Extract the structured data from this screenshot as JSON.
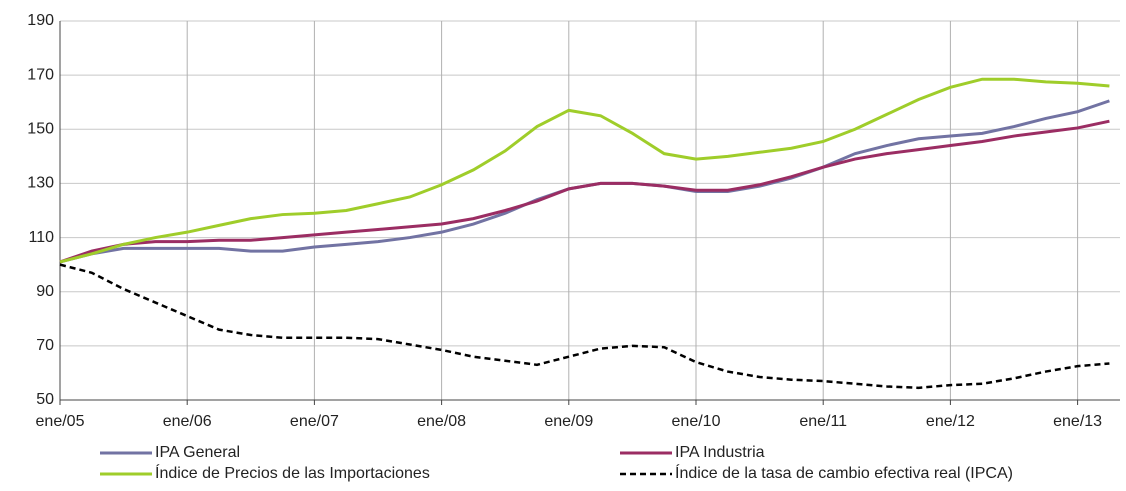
{
  "chart_data": {
    "type": "line",
    "x": [
      0,
      3,
      6,
      9,
      12,
      15,
      18,
      21,
      24,
      27,
      30,
      33,
      36,
      39,
      42,
      45,
      48,
      51,
      54,
      57,
      60,
      63,
      66,
      69,
      72,
      75,
      78,
      81,
      84,
      87,
      90,
      93,
      96,
      99
    ],
    "xlim": [
      0,
      100
    ],
    "xticks": [
      {
        "value": 0,
        "label": "ene/05"
      },
      {
        "value": 12,
        "label": "ene/06"
      },
      {
        "value": 24,
        "label": "ene/07"
      },
      {
        "value": 36,
        "label": "ene/08"
      },
      {
        "value": 48,
        "label": "ene/09"
      },
      {
        "value": 60,
        "label": "ene/10"
      },
      {
        "value": 72,
        "label": "ene/11"
      },
      {
        "value": 84,
        "label": "ene/12"
      },
      {
        "value": 96,
        "label": "ene/13"
      }
    ],
    "ylim": [
      50,
      190
    ],
    "yticks": [
      50,
      70,
      90,
      110,
      130,
      150,
      170,
      190
    ],
    "grid": true,
    "legend": "bottom",
    "series": [
      {
        "name": "IPA General",
        "color": "#7273a3",
        "dash": false,
        "values": [
          101,
          104,
          106,
          106,
          106,
          106,
          105,
          105,
          106.5,
          107.5,
          108.5,
          110,
          112,
          115,
          119,
          124,
          128,
          130,
          130,
          129,
          127,
          127,
          129,
          132,
          136,
          141,
          144,
          146.5,
          147.5,
          148.5,
          151,
          154,
          156.5,
          160.5
        ]
      },
      {
        "name": "IPA Industria",
        "color": "#9b2d63",
        "dash": false,
        "values": [
          101,
          105,
          107.5,
          108.5,
          108.5,
          109,
          109,
          110,
          111,
          112,
          113,
          114,
          115,
          117,
          120,
          123.5,
          128,
          130,
          130,
          129,
          127.5,
          127.5,
          129.5,
          132.5,
          136,
          139,
          141,
          142.5,
          144,
          145.5,
          147.5,
          149,
          150.5,
          153
        ]
      },
      {
        "name": "Índice de Precios de las Importaciones",
        "color": "#9fcd2a",
        "dash": false,
        "values": [
          101,
          104,
          107.5,
          110,
          112,
          114.5,
          117,
          118.5,
          119,
          120,
          122.5,
          125,
          129.5,
          135,
          142,
          151,
          157,
          155,
          148.5,
          141,
          139,
          140,
          141.5,
          143,
          145.5,
          150,
          155.5,
          161,
          165.5,
          168.5,
          168.5,
          167.5,
          167,
          166
        ]
      },
      {
        "name": "Índice de la tasa de cambio efectiva real (IPCA)",
        "color": "#000000",
        "dash": true,
        "values": [
          100,
          97,
          91,
          86,
          81,
          76,
          74,
          73,
          73,
          73,
          72.5,
          70.5,
          68.5,
          66,
          64.5,
          63,
          66,
          69,
          70,
          69.5,
          64,
          60.5,
          58.5,
          57.5,
          57,
          56,
          55,
          54.5,
          55.5,
          56,
          58,
          60.5,
          62.5,
          63.5
        ]
      }
    ]
  }
}
